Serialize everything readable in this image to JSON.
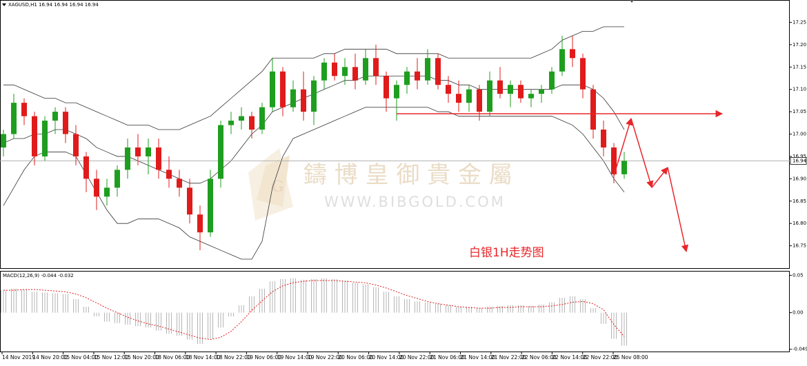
{
  "chart_data": [
    {
      "type": "candlestick",
      "header": "XAGUSD,H1  16.94 16.94 16.94 16.94",
      "annotation": "白银1H走势图",
      "watermark": "鑄 博 皇 御 貴 金 屬",
      "watermark_url": "WWW.BIBGOLD.COM",
      "x_labels": [
        "14 Nov 2019",
        "14 Nov 20:00",
        "15 Nov 04:00",
        "15 Nov 12:00",
        "15 Nov 20:00",
        "18 Nov 06:00",
        "18 Nov 14:00",
        "18 Nov 22:00",
        "19 Nov 06:00",
        "19 Nov 14:00",
        "19 Nov 22:00",
        "20 Nov 06:00",
        "20 Nov 14:00",
        "20 Nov 22:00",
        "21 Nov 06:00",
        "21 Nov 14:00",
        "21 Nov 22:00",
        "22 Nov 06:00",
        "22 Nov 14:00",
        "22 Nov 22:00",
        "25 Nov 08:00"
      ],
      "open": [
        16.97,
        17.0,
        17.07,
        17.04,
        16.95,
        17.03,
        17.05,
        17.0,
        16.95,
        16.9,
        16.86,
        16.88,
        16.92,
        16.97,
        16.95,
        16.97,
        16.92,
        16.9,
        16.88,
        16.82,
        16.78,
        16.9,
        17.02,
        17.03,
        17.04,
        17.01,
        17.06,
        17.14,
        17.06,
        17.1,
        17.05,
        17.12,
        17.16,
        17.13,
        17.15,
        17.12,
        17.17,
        17.13,
        17.08,
        17.11,
        17.14,
        17.12,
        17.17,
        17.11,
        17.09,
        17.07,
        17.1,
        17.05,
        17.12,
        17.09,
        17.11,
        17.08,
        17.09,
        17.1,
        17.14,
        17.19,
        17.17,
        17.1,
        17.01,
        16.97,
        16.91
      ],
      "high": [
        17.01,
        17.09,
        17.08,
        17.05,
        17.04,
        17.06,
        17.06,
        17.02,
        16.96,
        16.92,
        16.9,
        16.93,
        16.99,
        17.0,
        16.99,
        16.99,
        16.95,
        16.92,
        16.9,
        16.84,
        16.92,
        17.03,
        17.05,
        17.06,
        17.05,
        17.07,
        17.17,
        17.15,
        17.12,
        17.14,
        17.13,
        17.17,
        17.18,
        17.17,
        17.18,
        17.19,
        17.2,
        17.14,
        17.12,
        17.15,
        17.17,
        17.19,
        17.18,
        17.13,
        17.12,
        17.11,
        17.11,
        17.14,
        17.15,
        17.12,
        17.12,
        17.1,
        17.11,
        17.15,
        17.22,
        17.22,
        17.18,
        17.11,
        17.03,
        16.98,
        16.96
      ],
      "low": [
        16.95,
        16.99,
        17.02,
        16.93,
        16.94,
        17.0,
        16.98,
        16.93,
        16.87,
        16.83,
        16.84,
        16.86,
        16.9,
        16.93,
        16.91,
        16.9,
        16.88,
        16.86,
        16.8,
        16.74,
        16.77,
        16.88,
        17.0,
        17.01,
        16.99,
        17.0,
        17.05,
        17.04,
        17.05,
        17.03,
        17.02,
        17.1,
        17.12,
        17.11,
        17.1,
        17.11,
        17.11,
        17.05,
        17.03,
        17.09,
        17.1,
        17.11,
        17.1,
        17.07,
        17.05,
        17.05,
        17.03,
        17.04,
        17.08,
        17.06,
        17.07,
        17.06,
        17.07,
        17.09,
        17.13,
        17.15,
        17.08,
        16.99,
        16.95,
        16.89,
        16.9
      ],
      "close": [
        17.0,
        17.07,
        17.04,
        16.95,
        17.03,
        17.05,
        17.0,
        16.95,
        16.9,
        16.86,
        16.88,
        16.92,
        16.97,
        16.95,
        16.97,
        16.92,
        16.9,
        16.88,
        16.82,
        16.78,
        16.9,
        17.02,
        17.03,
        17.04,
        17.01,
        17.06,
        17.14,
        17.06,
        17.1,
        17.05,
        17.12,
        17.16,
        17.13,
        17.15,
        17.12,
        17.17,
        17.13,
        17.08,
        17.11,
        17.14,
        17.12,
        17.17,
        17.11,
        17.09,
        17.07,
        17.1,
        17.05,
        17.12,
        17.09,
        17.11,
        17.08,
        17.09,
        17.1,
        17.14,
        17.19,
        17.17,
        17.1,
        17.01,
        16.97,
        16.91,
        16.94
      ],
      "up_color": "#1e9e1e",
      "down_color": "#e01b1b",
      "bands": [
        {
          "color": "#333333",
          "values": [
            17.11,
            17.11,
            17.1,
            17.09,
            17.08,
            17.08,
            17.07,
            17.07,
            17.06,
            17.05,
            17.04,
            17.03,
            17.02,
            17.02,
            17.02,
            17.01,
            17.01,
            17.01,
            17.02,
            17.03,
            17.04,
            17.06,
            17.08,
            17.1,
            17.12,
            17.14,
            17.17,
            17.17,
            17.17,
            17.17,
            17.17,
            17.18,
            17.18,
            17.19,
            17.19,
            17.19,
            17.19,
            17.19,
            17.18,
            17.18,
            17.18,
            17.18,
            17.18,
            17.17,
            17.17,
            17.17,
            17.17,
            17.17,
            17.17,
            17.17,
            17.17,
            17.17,
            17.18,
            17.19,
            17.21,
            17.22,
            17.23,
            17.23,
            17.24,
            17.24,
            17.24
          ]
        },
        {
          "color": "#333333",
          "values": [
            16.98,
            16.99,
            16.99,
            17.0,
            17.0,
            17.01,
            17.01,
            17.0,
            16.99,
            16.97,
            16.96,
            16.95,
            16.95,
            16.94,
            16.93,
            16.92,
            16.91,
            16.9,
            16.89,
            16.89,
            16.9,
            16.92,
            16.94,
            16.97,
            17.0,
            17.02,
            17.05,
            17.06,
            17.07,
            17.08,
            17.09,
            17.1,
            17.11,
            17.12,
            17.12,
            17.13,
            17.13,
            17.13,
            17.13,
            17.13,
            17.13,
            17.13,
            17.12,
            17.12,
            17.11,
            17.11,
            17.1,
            17.1,
            17.1,
            17.1,
            17.1,
            17.1,
            17.1,
            17.1,
            17.11,
            17.11,
            17.11,
            17.1,
            17.08,
            17.05,
            17.01
          ]
        },
        {
          "color": "#333333",
          "values": [
            16.84,
            16.88,
            16.92,
            16.95,
            16.96,
            16.96,
            16.96,
            16.95,
            16.91,
            16.87,
            16.83,
            16.8,
            16.8,
            16.81,
            16.81,
            16.81,
            16.8,
            16.79,
            16.77,
            16.76,
            16.75,
            16.74,
            16.73,
            16.72,
            16.72,
            16.76,
            16.88,
            16.95,
            16.99,
            17.0,
            17.01,
            17.02,
            17.03,
            17.04,
            17.05,
            17.06,
            17.06,
            17.06,
            17.06,
            17.06,
            17.06,
            17.06,
            17.05,
            17.05,
            17.04,
            17.04,
            17.04,
            17.04,
            17.04,
            17.04,
            17.04,
            17.04,
            17.04,
            17.04,
            17.03,
            17.02,
            17.0,
            16.97,
            16.94,
            16.9,
            16.87
          ]
        }
      ],
      "current_price": 16.94,
      "ylim": [
        16.7,
        17.3
      ],
      "yticks": [
        16.75,
        {
          "value": 16.8,
          "label": "16.80"
        },
        16.85,
        {
          "value": 16.9,
          "label": "16.90"
        },
        16.95,
        {
          "value": 17.0,
          "label": "17.00"
        },
        17.05,
        {
          "value": 17.1,
          "label": "17.10"
        },
        17.15,
        {
          "value": 17.2,
          "label": "17.20"
        },
        17.25
      ]
    },
    {
      "type": "macd",
      "header": "MACD(12,26,9) -0.044 -0.032",
      "histogram": {
        "color": "#b4b4b4",
        "values": [
          0.03,
          0.032,
          0.031,
          0.028,
          0.027,
          0.026,
          0.025,
          0.018,
          0.008,
          -0.005,
          -0.012,
          -0.014,
          -0.016,
          -0.018,
          -0.02,
          -0.024,
          -0.028,
          -0.031,
          -0.036,
          -0.042,
          -0.035,
          -0.02,
          -0.005,
          0.01,
          0.022,
          0.032,
          0.042,
          0.045,
          0.046,
          0.044,
          0.045,
          0.046,
          0.045,
          0.043,
          0.04,
          0.038,
          0.034,
          0.028,
          0.022,
          0.018,
          0.015,
          0.014,
          0.012,
          0.01,
          0.008,
          0.008,
          0.006,
          0.008,
          0.009,
          0.01,
          0.01,
          0.009,
          0.011,
          0.014,
          0.02,
          0.022,
          0.018,
          0.006,
          -0.015,
          -0.035,
          -0.044
        ]
      },
      "signal": {
        "color": "#e01b1b",
        "values": [
          0.03,
          0.03,
          0.031,
          0.031,
          0.03,
          0.029,
          0.028,
          0.025,
          0.02,
          0.013,
          0.006,
          0.0,
          -0.006,
          -0.011,
          -0.015,
          -0.018,
          -0.022,
          -0.026,
          -0.03,
          -0.034,
          -0.036,
          -0.033,
          -0.025,
          -0.012,
          0.003,
          0.016,
          0.028,
          0.036,
          0.04,
          0.042,
          0.043,
          0.043,
          0.043,
          0.042,
          0.041,
          0.04,
          0.037,
          0.033,
          0.028,
          0.023,
          0.019,
          0.015,
          0.012,
          0.01,
          0.008,
          0.007,
          0.006,
          0.006,
          0.007,
          0.007,
          0.008,
          0.008,
          0.008,
          0.009,
          0.011,
          0.014,
          0.015,
          0.012,
          0.004,
          -0.016,
          -0.032
        ]
      },
      "ylim": [
        -0.052,
        0.055
      ],
      "yticks": [
        0.05,
        {
          "value": 0,
          "label": "0.00"
        },
        -0.049
      ]
    }
  ]
}
